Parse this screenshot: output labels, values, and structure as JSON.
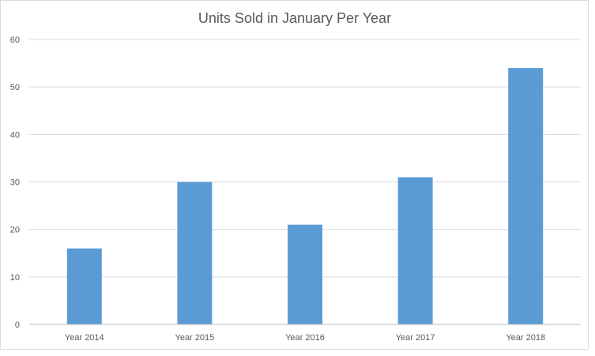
{
  "chart_data": {
    "type": "bar",
    "title": "Units Sold in January Per Year",
    "xlabel": "",
    "ylabel": "",
    "categories": [
      "Year 2014",
      "Year 2015",
      "Year 2016",
      "Year 2017",
      "Year 2018"
    ],
    "values": [
      16,
      30,
      21,
      31,
      54
    ],
    "ylim": [
      0,
      60
    ],
    "yticks": [
      "0",
      "10",
      "20",
      "30",
      "40",
      "50",
      "60"
    ],
    "grid": true,
    "legend": "none",
    "bar_color": "#5b9bd5"
  }
}
